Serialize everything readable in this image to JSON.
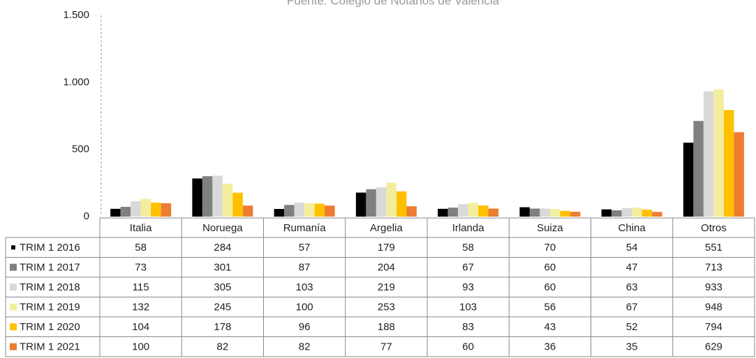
{
  "chart_data": {
    "type": "bar",
    "subtitle": "Fuente: Colegio de Notarios de Valencia",
    "categories": [
      "Italia",
      "Noruega",
      "Rumanía",
      "Argelia",
      "Irlanda",
      "Suiza",
      "China",
      "Otros"
    ],
    "series": [
      {
        "name": "TRIM 1 2016",
        "color": "#000000",
        "values": [
          58,
          284,
          57,
          179,
          58,
          70,
          54,
          551
        ]
      },
      {
        "name": "TRIM 1 2017",
        "color": "#808080",
        "values": [
          73,
          301,
          87,
          204,
          67,
          60,
          47,
          713
        ]
      },
      {
        "name": "TRIM 1 2018",
        "color": "#d9d9d9",
        "values": [
          115,
          305,
          103,
          219,
          93,
          60,
          63,
          933
        ]
      },
      {
        "name": "TRIM 1 2019",
        "color": "#f3ee9e",
        "values": [
          132,
          245,
          100,
          253,
          103,
          56,
          67,
          948
        ]
      },
      {
        "name": "TRIM 1 2020",
        "color": "#ffc000",
        "values": [
          104,
          178,
          96,
          188,
          83,
          43,
          52,
          794
        ]
      },
      {
        "name": "TRIM 1 2021",
        "color": "#ed7d31",
        "values": [
          100,
          82,
          82,
          77,
          60,
          36,
          35,
          629
        ]
      }
    ],
    "ylim": [
      0,
      1500
    ],
    "yticks": [
      0,
      500,
      {
        "value": 1000,
        "label": "1.000"
      },
      {
        "value": 1500,
        "label": "1.500"
      }
    ]
  }
}
